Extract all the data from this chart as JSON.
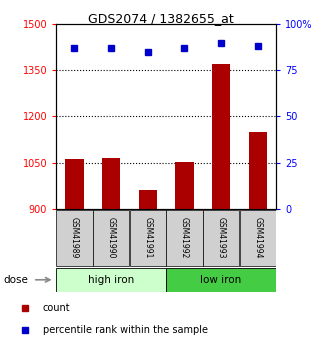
{
  "title": "GDS2074 / 1382655_at",
  "categories": [
    "GSM41989",
    "GSM41990",
    "GSM41991",
    "GSM41992",
    "GSM41993",
    "GSM41994"
  ],
  "bar_values": [
    1063,
    1065,
    960,
    1052,
    1370,
    1150
  ],
  "bar_base": 900,
  "percentile_values": [
    87,
    87,
    85,
    87,
    90,
    88
  ],
  "bar_color": "#aa0000",
  "dot_color": "#0000cc",
  "ylim_left": [
    900,
    1500
  ],
  "ylim_right": [
    0,
    100
  ],
  "yticks_left": [
    900,
    1050,
    1200,
    1350,
    1500
  ],
  "yticks_right": [
    0,
    25,
    50,
    75,
    100
  ],
  "group1_label": "high iron",
  "group2_label": "low iron",
  "group1_color": "#ccffcc",
  "group2_color": "#44cc44",
  "dose_label": "dose",
  "legend_count": "count",
  "legend_percentile": "percentile rank within the sample",
  "tick_label_color_left": "red",
  "tick_label_color_right": "blue",
  "bg_xticklabels": "#d0d0d0",
  "arrow_color": "#888888"
}
